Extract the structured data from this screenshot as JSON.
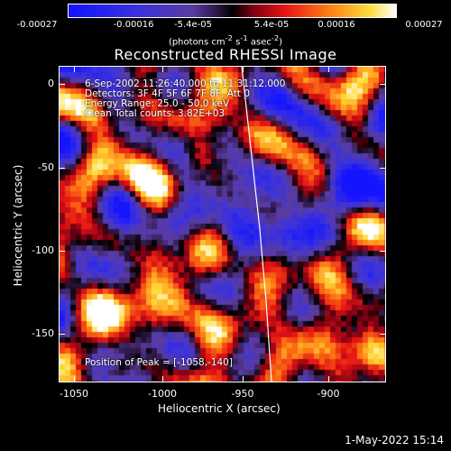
{
  "colorbar": {
    "ticks": [
      "-0.00027",
      "-0.00016",
      "-5.4e-05",
      "5.4e-05",
      "0.00016",
      "0.00027"
    ],
    "units_prefix": "(photons cm",
    "units_exp1": "-2",
    "units_mid": " s",
    "units_exp2": "-1",
    "units_mid2": " asec",
    "units_exp3": "-2",
    "units_suffix": ")"
  },
  "title": "Reconstructed RHESSI Image",
  "info": {
    "time": "6-Sep-2002 11:26:40.000 to 11:31:12.000",
    "detectors": "Detectors: 3F 4F 5F 6F 7F 8F, Att 0",
    "energy": "Energy Range: 25.0 - 50.0 keV",
    "clean": "Clean     Total counts: 3.82E+03",
    "peak": "Position of Peak = [-1058,-140]"
  },
  "axes": {
    "xlabel": "Heliocentric X (arcsec)",
    "ylabel": "Heliocentric Y (arcsec)",
    "xticks": [
      "-1050",
      "-1000",
      "-950",
      "-900"
    ],
    "yticks": [
      "0",
      "-50",
      "-100",
      "-150"
    ],
    "xlim": [
      -1055,
      -873
    ],
    "ylim": [
      -182,
      7
    ]
  },
  "date": "1-May-2022 15:14",
  "colors": {
    "background": "#000000",
    "text": "#ffffff"
  }
}
